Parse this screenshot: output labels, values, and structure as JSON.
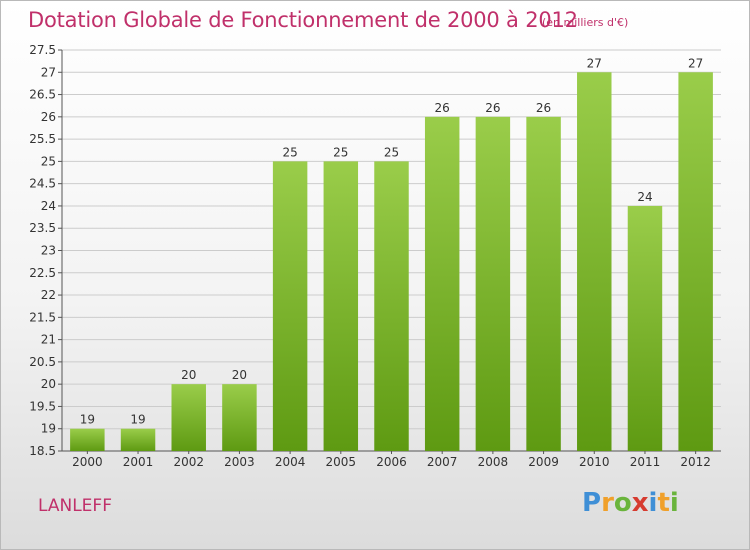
{
  "header": {
    "title": "Dotation Globale de Fonctionnement de 2000 à 2012",
    "unit": "(en milliers d'€)"
  },
  "footer": {
    "commune": "LANLEFF",
    "logo": {
      "p": "P",
      "r": "r",
      "o": "o",
      "x": "x",
      "i1": "i",
      "t": "t",
      "i2": "i"
    }
  },
  "colors": {
    "bar_light": "#9acd4a",
    "bar_dark": "#5e9a12",
    "title": "#c0306a",
    "grid": "#cccccc"
  },
  "chart_data": {
    "type": "bar",
    "title": "Dotation Globale de Fonctionnement de 2000 à 2012",
    "subtitle": "(en milliers d'€)",
    "xlabel": "",
    "ylabel": "",
    "categories": [
      "2000",
      "2001",
      "2002",
      "2003",
      "2004",
      "2005",
      "2006",
      "2007",
      "2008",
      "2009",
      "2010",
      "2011",
      "2012"
    ],
    "values": [
      19,
      19,
      20,
      20,
      25,
      25,
      25,
      26,
      26,
      26,
      27,
      24,
      27
    ],
    "data_labels": [
      "19",
      "19",
      "20",
      "20",
      "25",
      "25",
      "25",
      "26",
      "26",
      "26",
      "27",
      "24",
      "27"
    ],
    "ylim": [
      18.5,
      27.5
    ],
    "yticks": [
      "18.5",
      "19",
      "19.5",
      "20",
      "20.5",
      "21",
      "21.5",
      "22",
      "22.5",
      "23",
      "23.5",
      "24",
      "24.5",
      "25",
      "25.5",
      "26",
      "26.5",
      "27",
      "27.5"
    ],
    "grid": true,
    "legend": "none"
  }
}
